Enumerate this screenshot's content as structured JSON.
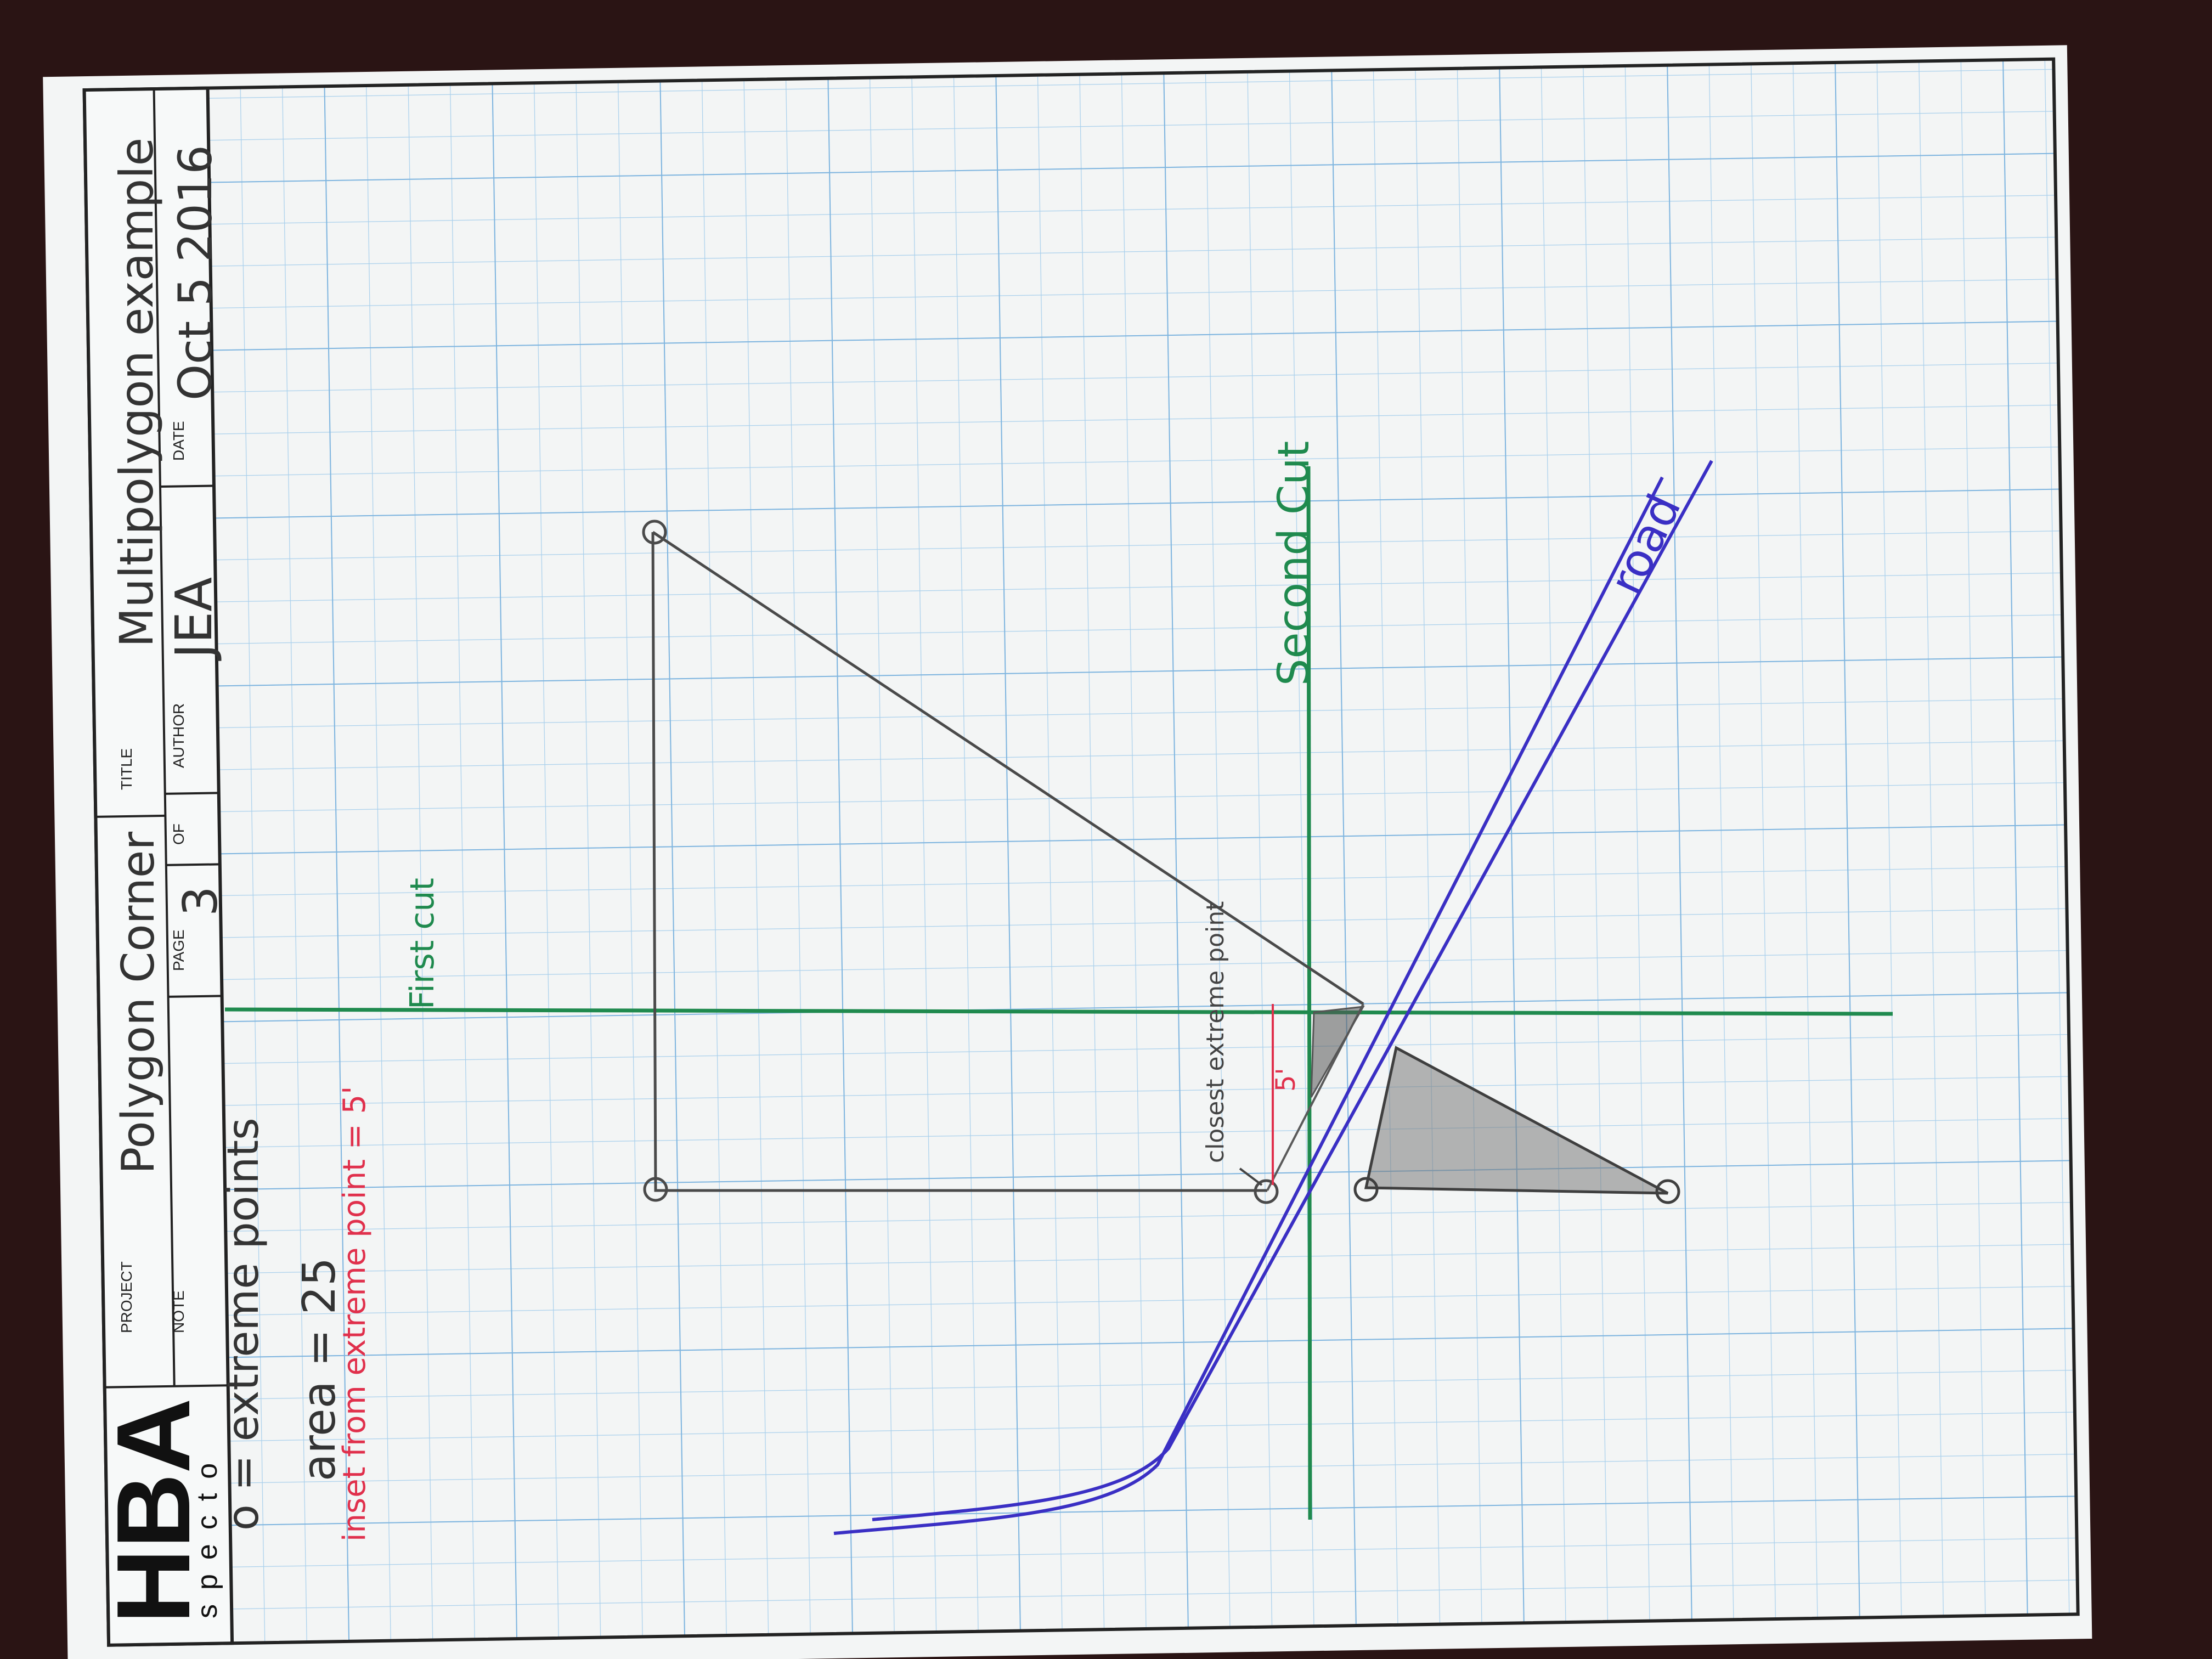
{
  "title_block": {
    "logo": "HBA",
    "logo_sub": "specto",
    "project_label": "PROJECT",
    "project_value": "Polygon Corner",
    "title_label": "TITLE",
    "title_value": "Multipolygon example",
    "note_label": "NOTE",
    "page_label": "PAGE",
    "page_value": "3",
    "of_label": "OF",
    "author_label": "AUTHOR",
    "author_value": "JEA",
    "date_label": "DATE",
    "date_value": "Oct 5 2016"
  },
  "notes": {
    "legend": "o = extreme points",
    "area": "area = 25",
    "inset": "inset from extreme point = 5'"
  },
  "labels": {
    "first_cut": "First cut",
    "second_cut": "Second Cut",
    "road": "road",
    "closest": "closest extreme point",
    "dimension": "5'"
  },
  "colors": {
    "paper": "#f4f6f6",
    "grid": "#8fbfe3",
    "pencil": "#4a4a4a",
    "cut_green": "#1f8a4e",
    "road_blue": "#3a2fc4",
    "note_red": "#e0304c",
    "background": "#2a1414"
  }
}
